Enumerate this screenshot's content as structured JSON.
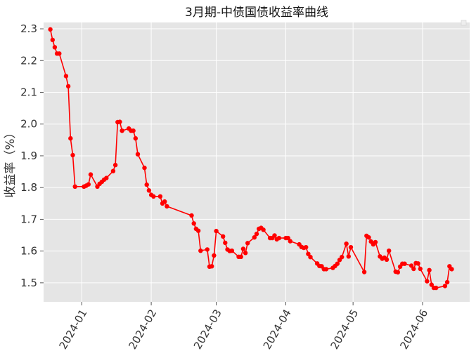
{
  "chart_data": {
    "type": "line",
    "title": "3月期-中债国债收益率曲线",
    "xlabel": "",
    "ylabel": "收益率（%）",
    "ylim": [
      1.44,
      2.32
    ],
    "xlim": [
      "2023-12-15",
      "2024-06-22"
    ],
    "yticks": [
      1.5,
      1.6,
      1.7,
      1.8,
      1.9,
      2.0,
      2.1,
      2.2,
      2.3
    ],
    "ytick_labels": [
      "1.5",
      "1.6",
      "1.7",
      "1.8",
      "1.9",
      "2.0",
      "2.1",
      "2.2",
      "2.3"
    ],
    "xticks": [
      "2024-01-01",
      "2024-02-01",
      "2024-03-01",
      "2024-04-01",
      "2024-05-01",
      "2024-06-01"
    ],
    "xtick_labels": [
      "2024-01",
      "2024-02",
      "2024-03",
      "2024-04",
      "2024-05",
      "2024-06"
    ],
    "grid": true,
    "colors": {
      "line": "#ff0000",
      "marker": "#ff0000",
      "background": "#e5e5e5",
      "grid": "#ffffff"
    },
    "series": [
      {
        "x": [
          "2023-12-18",
          "2023-12-19",
          "2023-12-20",
          "2023-12-21",
          "2023-12-22",
          "2023-12-25",
          "2023-12-26",
          "2023-12-27",
          "2023-12-28",
          "2023-12-29",
          "2024-01-02",
          "2024-01-03",
          "2024-01-04",
          "2024-01-05",
          "2024-01-08",
          "2024-01-09",
          "2024-01-10",
          "2024-01-11",
          "2024-01-12",
          "2024-01-15",
          "2024-01-16",
          "2024-01-17",
          "2024-01-18",
          "2024-01-19",
          "2024-01-22",
          "2024-01-23",
          "2024-01-24",
          "2024-01-25",
          "2024-01-26",
          "2024-01-29",
          "2024-01-30",
          "2024-01-31",
          "2024-02-01",
          "2024-02-02",
          "2024-02-05",
          "2024-02-06",
          "2024-02-07",
          "2024-02-08",
          "2024-02-19",
          "2024-02-20",
          "2024-02-21",
          "2024-02-22",
          "2024-02-23",
          "2024-02-26",
          "2024-02-27",
          "2024-02-28",
          "2024-02-29",
          "2024-03-01",
          "2024-03-04",
          "2024-03-05",
          "2024-03-06",
          "2024-03-07",
          "2024-03-08",
          "2024-03-11",
          "2024-03-12",
          "2024-03-13",
          "2024-03-14",
          "2024-03-15",
          "2024-03-18",
          "2024-03-19",
          "2024-03-20",
          "2024-03-21",
          "2024-03-22",
          "2024-03-25",
          "2024-03-26",
          "2024-03-27",
          "2024-03-28",
          "2024-03-29",
          "2024-04-01",
          "2024-04-02",
          "2024-04-03",
          "2024-04-07",
          "2024-04-08",
          "2024-04-09",
          "2024-04-10",
          "2024-04-11",
          "2024-04-12",
          "2024-04-15",
          "2024-04-16",
          "2024-04-17",
          "2024-04-18",
          "2024-04-19",
          "2024-04-22",
          "2024-04-23",
          "2024-04-24",
          "2024-04-25",
          "2024-04-26",
          "2024-04-28",
          "2024-04-29",
          "2024-04-30",
          "2024-05-06",
          "2024-05-07",
          "2024-05-08",
          "2024-05-09",
          "2024-05-10",
          "2024-05-11",
          "2024-05-13",
          "2024-05-14",
          "2024-05-15",
          "2024-05-16",
          "2024-05-17",
          "2024-05-20",
          "2024-05-21",
          "2024-05-22",
          "2024-05-23",
          "2024-05-24",
          "2024-05-27",
          "2024-05-28",
          "2024-05-29",
          "2024-05-30",
          "2024-05-31",
          "2024-06-03",
          "2024-06-04",
          "2024-06-05",
          "2024-06-06",
          "2024-06-07",
          "2024-06-11",
          "2024-06-12",
          "2024-06-13",
          "2024-06-14"
        ],
        "values": [
          2.298,
          2.265,
          2.242,
          2.222,
          2.222,
          2.151,
          2.119,
          1.955,
          1.902,
          1.803,
          1.803,
          1.806,
          1.81,
          1.841,
          1.803,
          1.812,
          1.818,
          1.825,
          1.83,
          1.852,
          1.871,
          2.006,
          2.007,
          1.979,
          1.986,
          1.979,
          1.979,
          1.955,
          1.905,
          1.862,
          1.809,
          1.791,
          1.777,
          1.772,
          1.772,
          1.75,
          1.756,
          1.741,
          1.712,
          1.687,
          1.67,
          1.664,
          1.601,
          1.605,
          1.551,
          1.552,
          1.586,
          1.663,
          1.646,
          1.626,
          1.605,
          1.6,
          1.601,
          1.582,
          1.582,
          1.607,
          1.594,
          1.625,
          1.643,
          1.654,
          1.67,
          1.673,
          1.667,
          1.641,
          1.641,
          1.649,
          1.637,
          1.641,
          1.641,
          1.641,
          1.631,
          1.621,
          1.613,
          1.61,
          1.612,
          1.591,
          1.581,
          1.561,
          1.553,
          1.552,
          1.543,
          1.543,
          1.547,
          1.553,
          1.56,
          1.572,
          1.581,
          1.623,
          1.583,
          1.612,
          1.534,
          1.648,
          1.643,
          1.63,
          1.621,
          1.628,
          1.583,
          1.576,
          1.579,
          1.573,
          1.601,
          1.535,
          1.533,
          1.551,
          1.56,
          1.56,
          1.554,
          1.544,
          1.562,
          1.561,
          1.544,
          1.505,
          1.54,
          1.494,
          1.484,
          1.484,
          1.49,
          1.502,
          1.552,
          1.543
        ]
      }
    ]
  }
}
